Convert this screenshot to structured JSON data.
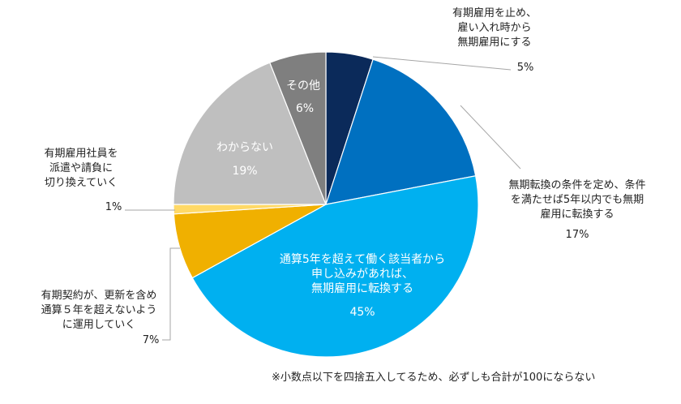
{
  "chart_data": {
    "type": "pie",
    "title": "",
    "start_angle_deg": 0,
    "direction": "clockwise",
    "slices": [
      {
        "label_lines": [
          "有期雇用を止め、",
          "雇い入れ時から",
          "無期雇用にする"
        ],
        "value": 5,
        "value_label": "5%",
        "color": "#0b2a5a"
      },
      {
        "label_lines": [
          "無期転換の条件を定め、条件",
          "を満たせば5年以内でも無期",
          "雇用に転換する"
        ],
        "value": 17,
        "value_label": "17%",
        "color": "#0070c0"
      },
      {
        "label_lines": [
          "通算5年を超えて働く該当者から",
          "申し込みがあれば、",
          "無期雇用に転換する"
        ],
        "value": 45,
        "value_label": "45%",
        "color": "#00b0f0"
      },
      {
        "label_lines": [
          "有期契約が、更新を含め",
          "通算５年を超えないよう",
          "に運用していく"
        ],
        "value": 7,
        "value_label": "7%",
        "color": "#f0b000"
      },
      {
        "label_lines": [
          "有期雇用社員を",
          "派遣や請負に",
          "切り換えていく"
        ],
        "value": 1,
        "value_label": "1%",
        "color": "#ffd966"
      },
      {
        "label_lines": [
          "わからない"
        ],
        "value": 19,
        "value_label": "19%",
        "color": "#bfbfbf"
      },
      {
        "label_lines": [
          "その他"
        ],
        "value": 6,
        "value_label": "6%",
        "color": "#7f7f7f"
      }
    ]
  },
  "footnote": "※小数点以下を四捨五入してるため、必ずしも合計が100にならない"
}
